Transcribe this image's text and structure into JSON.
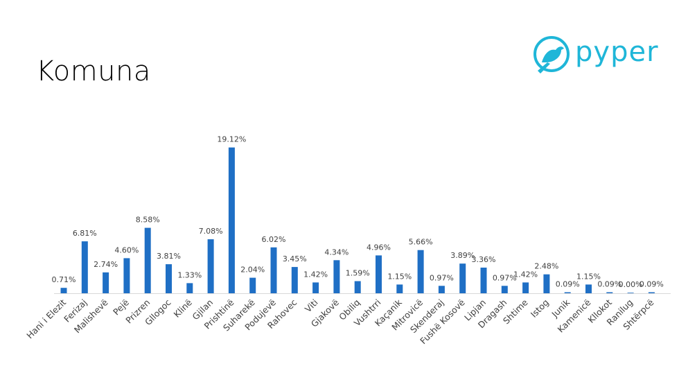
{
  "title": "Komuna",
  "logo": {
    "text": "pyper",
    "icon": "bird-icon",
    "color": "#1fb6d8"
  },
  "chart_data": {
    "type": "bar",
    "categories": [
      "Hani i Elezit",
      "Ferizaj",
      "Malishevë",
      "Pejë",
      "Prizren",
      "Gllogoc",
      "Klinë",
      "Gjilan",
      "Prishtinë",
      "Suharekë",
      "Podujevë",
      "Rahovec",
      "Viti",
      "Gjakovë",
      "Obiliq",
      "Vushtrri",
      "Kaçanik",
      "Mitrovicë",
      "Skenderaj",
      "Fushë Kosovë",
      "Lipjan",
      "Dragash",
      "Shtime",
      "Istog",
      "Junik",
      "Kamenicë",
      "Kllokot",
      "Ranilug",
      "Shtërpcë"
    ],
    "values": [
      0.71,
      6.81,
      2.74,
      4.6,
      8.58,
      3.81,
      1.33,
      7.08,
      19.12,
      2.04,
      6.02,
      3.45,
      1.42,
      4.34,
      1.59,
      4.96,
      1.15,
      5.66,
      0.97,
      3.89,
      3.36,
      0.97,
      1.42,
      2.48,
      0.09,
      1.15,
      0.09,
      0.0,
      0.09
    ],
    "labels": [
      "0.71%",
      "6.81%",
      "2.74%",
      "4.60%",
      "8.58%",
      "3.81%",
      "1.33%",
      "7.08%",
      "19.12%",
      "2.04%",
      "6.02%",
      "3.45%",
      "1.42%",
      "4.34%",
      "1.59%",
      "4.96%",
      "1.15%",
      "5.66%",
      "0.97%",
      "3.89%",
      "3.36%",
      "0.97%",
      "1.42%",
      "2.48%",
      "0.09%",
      "1.15%",
      "0.09%",
      "0.00%",
      "0.09%"
    ],
    "bar_color": "#1f6fc5",
    "ylim": [
      0,
      20
    ],
    "grid": false,
    "legend": "none",
    "xlabel": "",
    "ylabel": ""
  }
}
